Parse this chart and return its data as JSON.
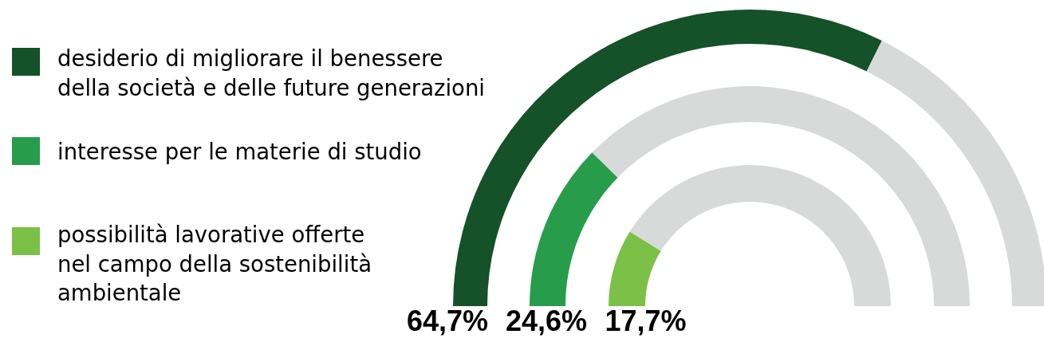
{
  "chart_data": [
    {
      "type": "donut",
      "categories": [
        "desiderio di migliorare il benessere della società e delle future generazioni",
        null
      ],
      "values": [
        64.7,
        35.3
      ],
      "colors": [
        "#155129",
        "#d8dad9"
      ],
      "value_labels": [
        "64,7%",
        null
      ],
      "legend": "left"
    },
    {
      "type": "donut",
      "categories": [
        "interesse per le materie di studio",
        null
      ],
      "values": [
        24.6,
        75.4
      ],
      "colors": [
        "#279d4c",
        "#d8dad9"
      ],
      "value_labels": [
        "24,6%",
        null
      ],
      "legend": "left"
    },
    {
      "type": "donut",
      "categories": [
        "possibilità lavorative offerte nel campo della sostenibilità ambientale",
        null
      ],
      "values": [
        17.7,
        82.3
      ],
      "colors": [
        "#7bc147",
        "#d8dad9"
      ],
      "value_labels": [
        "17,7%",
        null
      ],
      "legend": "left"
    }
  ]
}
